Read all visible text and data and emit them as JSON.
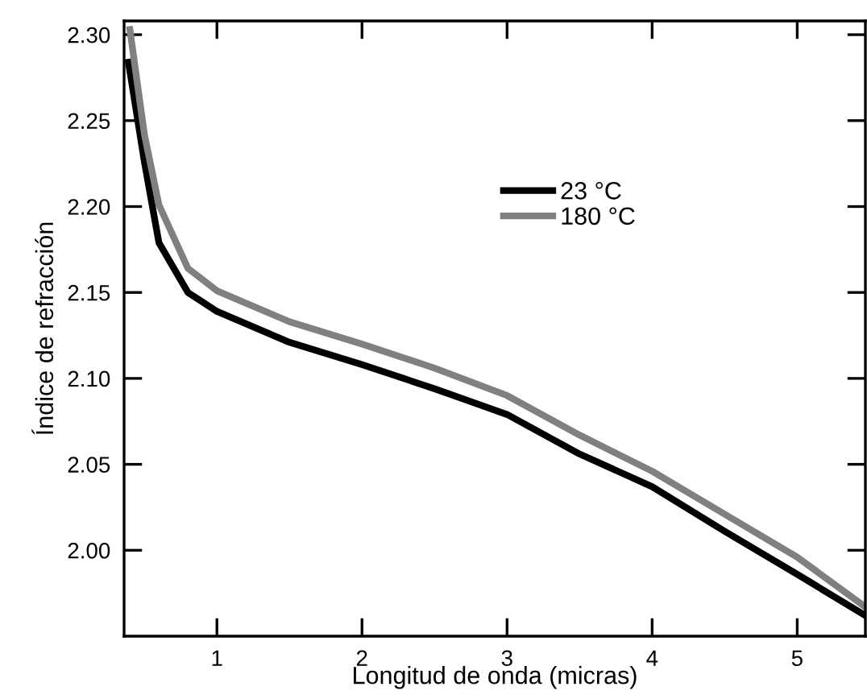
{
  "chart_data": {
    "type": "line",
    "xlabel": "Longitud de onda (micras)",
    "ylabel": "Índice de refracción",
    "xlim": [
      0.36,
      5.47
    ],
    "xticks": [
      1,
      2,
      3,
      4,
      5
    ],
    "ylim": [
      1.95,
      2.308
    ],
    "yticks": [
      {
        "value": 2.0,
        "label": "2.00"
      },
      2.05,
      {
        "value": 2.1,
        "label": "2.10"
      },
      2.15,
      {
        "value": 2.2,
        "label": "2.20"
      },
      2.25,
      {
        "value": 2.3,
        "label": "2.30"
      }
    ],
    "grid": false,
    "legend": "right",
    "marker": "none",
    "line_style": "solid",
    "series": [
      {
        "name": "23 °C",
        "color": "#000000",
        "x": [
          0.39,
          0.5,
          0.6,
          0.8,
          1.0,
          1.5,
          2.0,
          2.5,
          3.0,
          3.5,
          4.0,
          4.5,
          5.0,
          5.47
        ],
        "values": [
          2.284,
          2.226,
          2.179,
          2.15,
          2.139,
          2.121,
          2.108,
          2.094,
          2.079,
          2.056,
          2.037,
          2.011,
          1.986,
          1.962
        ]
      },
      {
        "name": "180 °C",
        "color": "#808080",
        "x": [
          0.4,
          0.5,
          0.6,
          0.8,
          1.0,
          1.5,
          2.0,
          2.5,
          3.0,
          3.5,
          4.0,
          4.5,
          5.0,
          5.47
        ],
        "values": [
          2.303,
          2.242,
          2.201,
          2.164,
          2.151,
          2.133,
          2.12,
          2.106,
          2.09,
          2.067,
          2.046,
          2.021,
          1.996,
          1.967
        ]
      }
    ]
  }
}
